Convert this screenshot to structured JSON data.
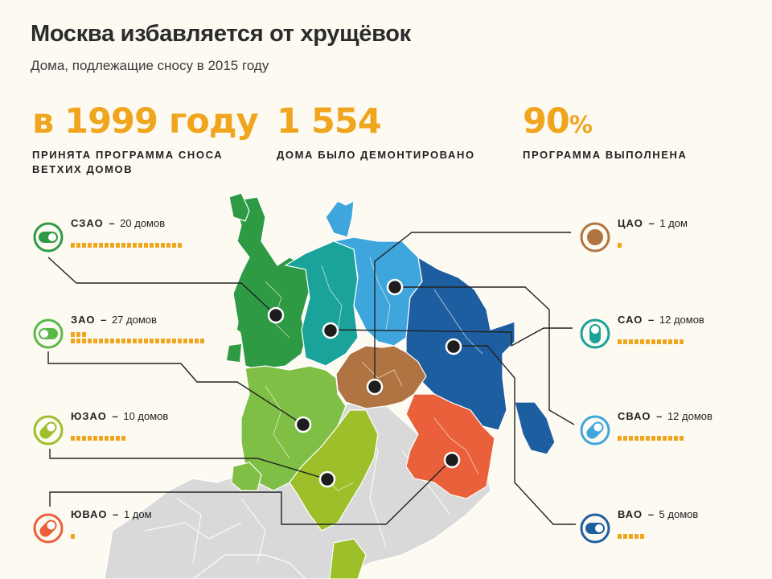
{
  "header": {
    "title": "Москва избавляется от хрущёвок",
    "subtitle": "Дома, подлежащие сносу в 2015 году"
  },
  "stats": [
    {
      "value": "в 1999 году",
      "label_line1": "ПРИНЯТА ПРОГРАММА СНОСА",
      "label_line2": "ВЕТХИХ ДОМОВ"
    },
    {
      "value": "1 554",
      "label_line1": "ДОМА БЫЛО ДЕМОНТИРОВАНО",
      "label_line2": ""
    },
    {
      "value_main": "90",
      "value_suffix": "%",
      "label_line1": "ПРОГРАММА ВЫПОЛНЕНА",
      "label_line2": ""
    }
  ],
  "dash": "–",
  "districts_left": [
    {
      "name": "СЗАО",
      "count_text": "20 домов",
      "count": 20,
      "color": "#2e9a44"
    },
    {
      "name": "ЗАО",
      "count_text": "27 домов",
      "count": 27,
      "color": "#5bb846"
    },
    {
      "name": "ЮЗАО",
      "count_text": "10 домов",
      "count": 10,
      "color": "#9cbf2a"
    },
    {
      "name": "ЮВАО",
      "count_text": "1 дом",
      "count": 1,
      "color": "#e9603a"
    }
  ],
  "districts_right": [
    {
      "name": "ЦАО",
      "count_text": "1 дом",
      "count": 1,
      "color": "#b07443"
    },
    {
      "name": "САО",
      "count_text": "12 домов",
      "count": 12,
      "color": "#1aa39a"
    },
    {
      "name": "СВАО",
      "count_text": "12 домов",
      "count": 12,
      "color": "#3ea6dc"
    },
    {
      "name": "ВАО",
      "count_text": "5 домов",
      "count": 5,
      "color": "#1d5ea0"
    }
  ],
  "colors": {
    "accent": "#f0a51e",
    "gray_region": "#d6d6d6",
    "marker": "#222222"
  }
}
